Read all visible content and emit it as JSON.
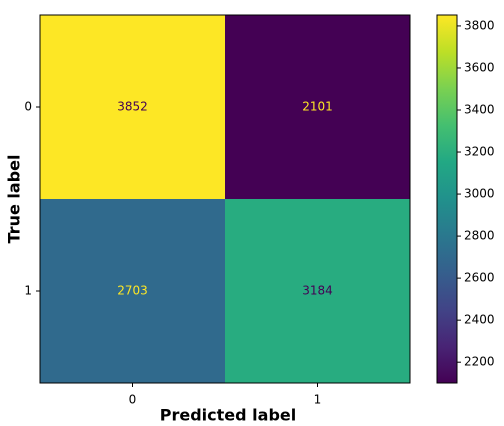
{
  "chart_data": {
    "type": "heatmap",
    "x_categories": [
      "0",
      "1"
    ],
    "y_categories": [
      "0",
      "1"
    ],
    "values": [
      [
        3852,
        2101
      ],
      [
        2703,
        3184
      ]
    ],
    "xlabel": "Predicted label",
    "ylabel": "True label",
    "colormap": "viridis",
    "clim": [
      2101,
      3852
    ],
    "cticks": [
      2200,
      2400,
      2600,
      2800,
      3000,
      3200,
      3400,
      3600,
      3800
    ]
  }
}
